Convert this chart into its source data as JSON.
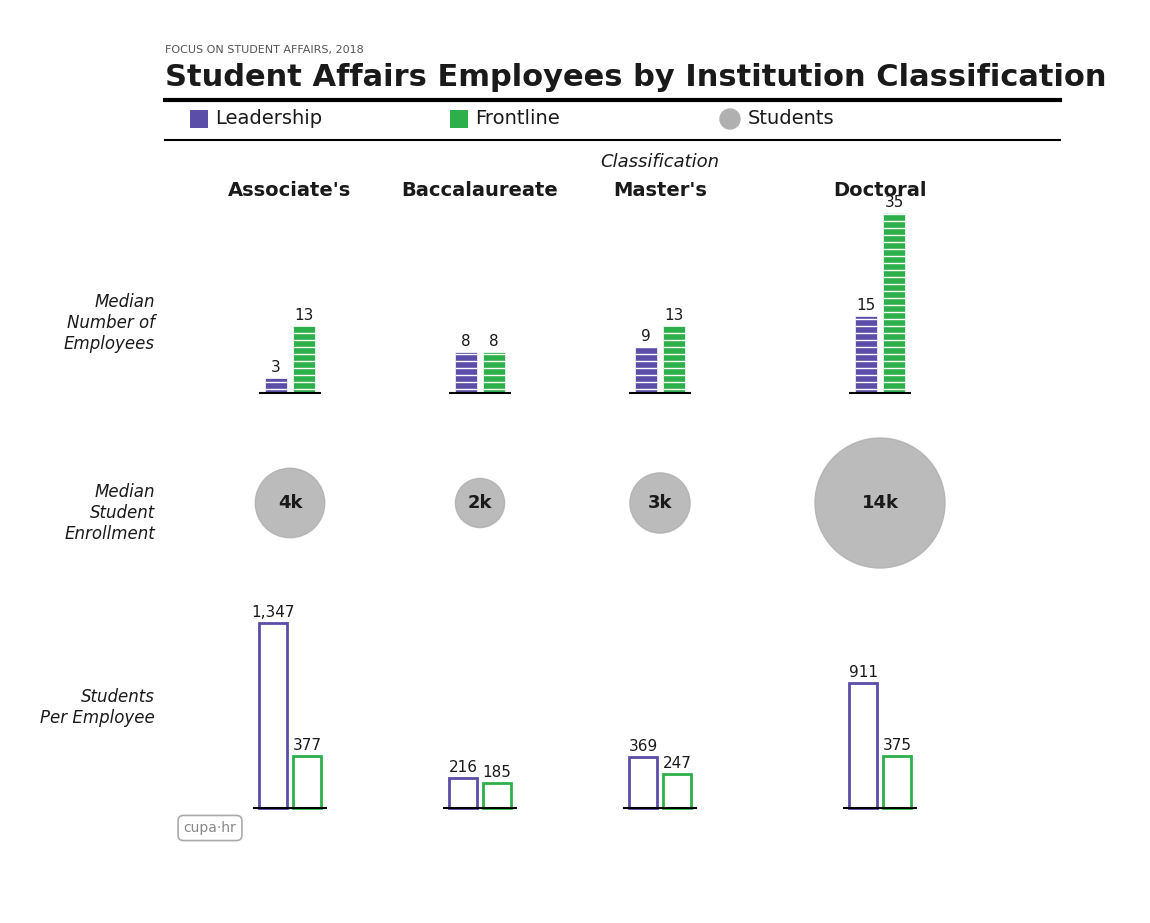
{
  "title": "Student Affairs Employees by Institution Classification",
  "subtitle": "FOCUS ON STUDENT AFFAIRS, 2018",
  "col_label": "Classification",
  "categories": [
    "Associate's",
    "Baccalaureate",
    "Master's",
    "Doctoral"
  ],
  "legend": [
    {
      "label": "Leadership",
      "color": "#5b4ea8"
    },
    {
      "label": "Frontline",
      "color": "#2db04b"
    },
    {
      "label": "Students",
      "color": "#aaaaaa"
    }
  ],
  "row_labels": [
    "Median\nNumber of\nEmployees",
    "Median\nStudent\nEnrollment",
    "Students\nPer Employee"
  ],
  "employees_leadership": [
    3,
    8,
    9,
    15
  ],
  "employees_frontline": [
    13,
    8,
    13,
    35
  ],
  "enrollment": [
    4,
    2,
    3,
    14
  ],
  "enrollment_labels": [
    "4k",
    "2k",
    "3k",
    "14k"
  ],
  "spe_leadership": [
    1347,
    216,
    369,
    911
  ],
  "spe_frontline": [
    377,
    185,
    247,
    375
  ],
  "spe_leadership_labels": [
    "1,347",
    "216",
    "369",
    "911"
  ],
  "spe_frontline_labels": [
    "377",
    "185",
    "247",
    "375"
  ],
  "purple": "#5b4ea8",
  "green": "#2db04b",
  "gray": "#b0b0b0",
  "background": "#ffffff",
  "bar_hatch": "=",
  "text_color": "#1a1a1a"
}
